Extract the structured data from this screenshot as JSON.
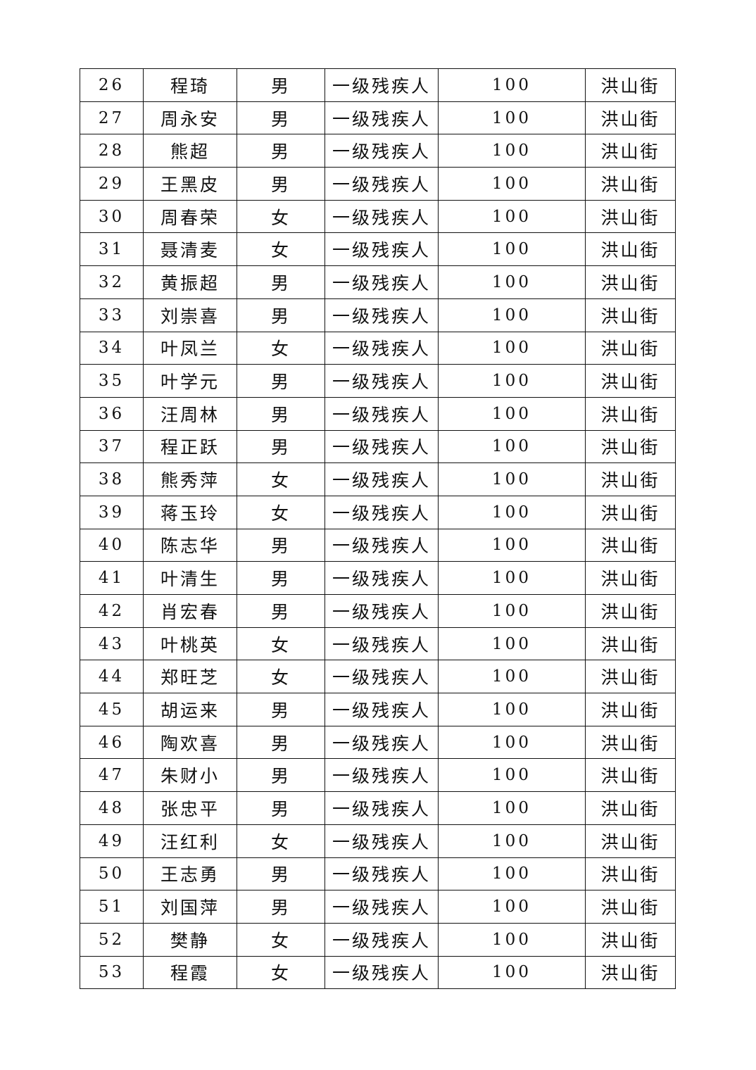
{
  "rows": [
    [
      "26",
      "程琦",
      "男",
      "一级残疾人",
      "100",
      "洪山街"
    ],
    [
      "27",
      "周永安",
      "男",
      "一级残疾人",
      "100",
      "洪山街"
    ],
    [
      "28",
      "熊超",
      "男",
      "一级残疾人",
      "100",
      "洪山街"
    ],
    [
      "29",
      "王黑皮",
      "男",
      "一级残疾人",
      "100",
      "洪山街"
    ],
    [
      "30",
      "周春荣",
      "女",
      "一级残疾人",
      "100",
      "洪山街"
    ],
    [
      "31",
      "聂清麦",
      "女",
      "一级残疾人",
      "100",
      "洪山街"
    ],
    [
      "32",
      "黄振超",
      "男",
      "一级残疾人",
      "100",
      "洪山街"
    ],
    [
      "33",
      "刘崇喜",
      "男",
      "一级残疾人",
      "100",
      "洪山街"
    ],
    [
      "34",
      "叶凤兰",
      "女",
      "一级残疾人",
      "100",
      "洪山街"
    ],
    [
      "35",
      "叶学元",
      "男",
      "一级残疾人",
      "100",
      "洪山街"
    ],
    [
      "36",
      "汪周林",
      "男",
      "一级残疾人",
      "100",
      "洪山街"
    ],
    [
      "37",
      "程正跃",
      "男",
      "一级残疾人",
      "100",
      "洪山街"
    ],
    [
      "38",
      "熊秀萍",
      "女",
      "一级残疾人",
      "100",
      "洪山街"
    ],
    [
      "39",
      "蒋玉玲",
      "女",
      "一级残疾人",
      "100",
      "洪山街"
    ],
    [
      "40",
      "陈志华",
      "男",
      "一级残疾人",
      "100",
      "洪山街"
    ],
    [
      "41",
      "叶清生",
      "男",
      "一级残疾人",
      "100",
      "洪山街"
    ],
    [
      "42",
      "肖宏春",
      "男",
      "一级残疾人",
      "100",
      "洪山街"
    ],
    [
      "43",
      "叶桃英",
      "女",
      "一级残疾人",
      "100",
      "洪山街"
    ],
    [
      "44",
      "郑旺芝",
      "女",
      "一级残疾人",
      "100",
      "洪山街"
    ],
    [
      "45",
      "胡运来",
      "男",
      "一级残疾人",
      "100",
      "洪山街"
    ],
    [
      "46",
      "陶欢喜",
      "男",
      "一级残疾人",
      "100",
      "洪山街"
    ],
    [
      "47",
      "朱财小",
      "男",
      "一级残疾人",
      "100",
      "洪山街"
    ],
    [
      "48",
      "张忠平",
      "男",
      "一级残疾人",
      "100",
      "洪山街"
    ],
    [
      "49",
      "汪红利",
      "女",
      "一级残疾人",
      "100",
      "洪山街"
    ],
    [
      "50",
      "王志勇",
      "男",
      "一级残疾人",
      "100",
      "洪山街"
    ],
    [
      "51",
      "刘国萍",
      "男",
      "一级残疾人",
      "100",
      "洪山街"
    ],
    [
      "52",
      "樊静",
      "女",
      "一级残疾人",
      "100",
      "洪山街"
    ],
    [
      "53",
      "程霞",
      "女",
      "一级残疾人",
      "100",
      "洪山街"
    ]
  ]
}
